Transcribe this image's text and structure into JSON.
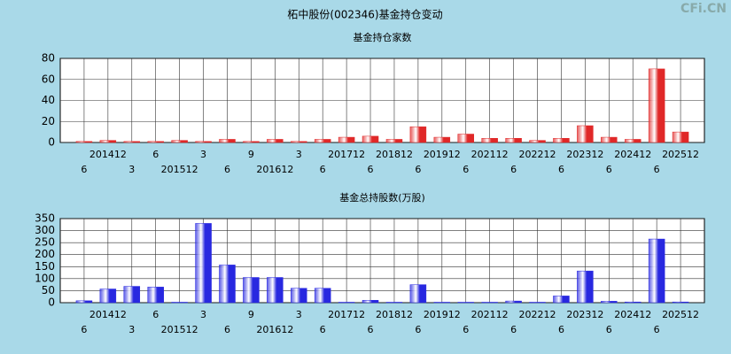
{
  "title": "柘中股份(002346)基金持仓变动",
  "watermark": "CFi.CN",
  "chart_data": [
    {
      "type": "bar",
      "title": "基金持仓家数",
      "categories": [
        "6",
        "201412",
        "3",
        "6",
        "201512",
        "3",
        "6",
        "9",
        "201612",
        "3",
        "6",
        "201712",
        "6",
        "201812",
        "6",
        "201912",
        "6",
        "202112",
        "6",
        "202212",
        "6",
        "202312",
        "6",
        "202412",
        "6",
        "202512"
      ],
      "values": [
        1,
        2,
        1,
        1,
        2,
        1,
        3,
        1,
        3,
        1,
        3,
        5,
        6,
        3,
        15,
        5,
        8,
        4,
        4,
        2,
        4,
        16,
        5,
        3,
        70,
        10
      ],
      "color": "#e02828",
      "ylim": [
        0,
        80
      ],
      "yticks": [
        0,
        20,
        40,
        60,
        80
      ],
      "grid": true
    },
    {
      "type": "bar",
      "title": "基金总持股数(万股)",
      "categories": [
        "6",
        "201412",
        "3",
        "6",
        "201512",
        "3",
        "6",
        "9",
        "201612",
        "3",
        "6",
        "201712",
        "6",
        "201812",
        "6",
        "201912",
        "6",
        "202112",
        "6",
        "202212",
        "6",
        "202312",
        "6",
        "202412",
        "6",
        "202512"
      ],
      "values": [
        8,
        57,
        68,
        65,
        2,
        330,
        157,
        105,
        105,
        60,
        60,
        2,
        10,
        2,
        75,
        2,
        2,
        2,
        7,
        2,
        28,
        132,
        6,
        3,
        265,
        3
      ],
      "color": "#2828e0",
      "ylim": [
        0,
        350
      ],
      "yticks": [
        0,
        50,
        100,
        150,
        200,
        250,
        300,
        350
      ],
      "grid": true
    }
  ]
}
